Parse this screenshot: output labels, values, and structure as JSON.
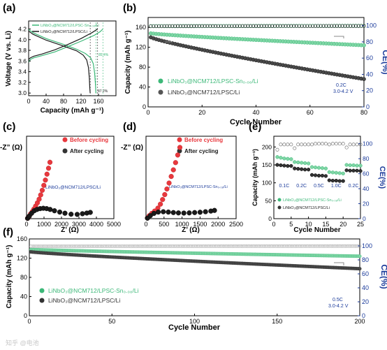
{
  "colors": {
    "green": "#3cb878",
    "green_light": "#7fd6a5",
    "black": "#1a1a1a",
    "gray": "#7a7a7a",
    "red": "#e8383d",
    "blue": "#1a3a9a",
    "axis": "#000000"
  },
  "chart_data": [
    {
      "panel_label": "(a)",
      "type": "line",
      "xlabel": "Capacity (mAh g⁻¹)",
      "ylabel": "Voltage (V vs Li)",
      "xlim": [
        0,
        200
      ],
      "ylim": [
        2.95,
        4.35
      ],
      "xticks": [
        "0",
        "40",
        "80",
        "120",
        "160"
      ],
      "yticks": [
        "3.0",
        "3.2",
        "3.4",
        "3.6",
        "3.8",
        "4.0",
        "4.2"
      ],
      "legend": [
        "LiNbO₃@NCM712/LPSC-Sn₀.₀₈/Li",
        "LiNbO₃@NCM712/LPSC/Li"
      ],
      "annotations": [
        "85.4%",
        "87.2%"
      ],
      "series": [
        {
          "name": "LiNbO₃@NCM712/LPSC-Sn₀.₀₈/Li",
          "color": "green",
          "charge": [
            [
              0,
              3.58
            ],
            [
              4,
              3.63
            ],
            [
              12,
              3.66
            ],
            [
              30,
              3.7
            ],
            [
              60,
              3.77
            ],
            [
              90,
              3.87
            ],
            [
              120,
              3.97
            ],
            [
              150,
              4.08
            ],
            [
              164,
              4.15
            ],
            [
              170,
              4.2
            ]
          ],
          "discharge": [
            [
              0,
              4.19
            ],
            [
              10,
              4.13
            ],
            [
              40,
              4.02
            ],
            [
              80,
              3.91
            ],
            [
              110,
              3.82
            ],
            [
              130,
              3.74
            ],
            [
              142,
              3.66
            ],
            [
              148,
              3.55
            ],
            [
              151,
              3.38
            ],
            [
              153,
              3.18
            ],
            [
              154,
              3.0
            ]
          ]
        },
        {
          "name": "LiNbO₃@NCM712/LPSC/Li",
          "color": "black",
          "charge": [
            [
              0,
              3.63
            ],
            [
              4,
              3.66
            ],
            [
              12,
              3.69
            ],
            [
              30,
              3.73
            ],
            [
              60,
              3.81
            ],
            [
              90,
              3.91
            ],
            [
              120,
              4.02
            ],
            [
              145,
              4.13
            ],
            [
              158,
              4.2
            ]
          ],
          "discharge": [
            [
              0,
              4.16
            ],
            [
              10,
              4.1
            ],
            [
              40,
              3.99
            ],
            [
              80,
              3.88
            ],
            [
              110,
              3.79
            ],
            [
              125,
              3.71
            ],
            [
              133,
              3.62
            ],
            [
              137,
              3.48
            ],
            [
              139,
              3.28
            ],
            [
              140,
              3.1
            ],
            [
              141,
              3.0
            ]
          ]
        }
      ]
    },
    {
      "panel_label": "(b)",
      "type": "scatter",
      "xlabel": "Cycle Number",
      "ylabel": "Capacity (mAh g⁻¹)",
      "y2label": "CE(%)",
      "xlim": [
        0,
        80
      ],
      "ylim": [
        0,
        180
      ],
      "y2lim": [
        0,
        110
      ],
      "xticks": [
        "0",
        "20",
        "40",
        "60",
        "80"
      ],
      "yticks": [
        "0",
        "40",
        "80",
        "120",
        "160"
      ],
      "y2ticks": [
        "0",
        "20",
        "40",
        "60",
        "80",
        "100"
      ],
      "legend": [
        "LiNbO₃@NCM712/LPSC-Sn₀.₀₈/Li",
        "LiNbO₃@NCM712/LPSC/Li"
      ],
      "annotations": [
        "0.2C",
        "3.0-4.2 V"
      ],
      "series": [
        {
          "name": "LiNbO₃@NCM712/LPSC-Sn₀.₀₈/Li",
          "color": "green",
          "axis": "left",
          "start": 148,
          "end": 124,
          "n": 80
        },
        {
          "name": "LiNbO₃@NCM712/LPSC/Li",
          "color": "black",
          "axis": "left",
          "start": 140,
          "end": 56,
          "n": 80
        },
        {
          "name": "CE Sn",
          "color": "green",
          "axis": "right",
          "start": 99.5,
          "end": 99.8,
          "n": 80,
          "open": true
        },
        {
          "name": "CE LPSC",
          "color": "black",
          "axis": "right",
          "start": 99.2,
          "end": 99.5,
          "n": 80,
          "open": true
        }
      ]
    },
    {
      "panel_label": "(c)",
      "type": "scatter",
      "xlabel": "Z’ (Ω)",
      "ylabel": "-Z” (Ω)",
      "xlim": [
        0,
        5000
      ],
      "ylim": [
        0,
        5000
      ],
      "xticks": [
        "0",
        "1000",
        "2000",
        "3000",
        "4000",
        "5000"
      ],
      "yticks": [],
      "legend": [
        "Before cycling",
        "After cycling"
      ],
      "annotations": [
        "LiNbO₃@NCM712/LPSC/Li"
      ],
      "series": [
        {
          "name": "Before cycling",
          "color": "red",
          "points": [
            [
              60,
              20
            ],
            [
              150,
              140
            ],
            [
              230,
              290
            ],
            [
              330,
              430
            ],
            [
              420,
              580
            ],
            [
              520,
              760
            ],
            [
              620,
              960
            ],
            [
              720,
              1180
            ],
            [
              810,
              1440
            ],
            [
              900,
              1720
            ],
            [
              990,
              2020
            ],
            [
              1080,
              2340
            ],
            [
              1170,
              2700
            ],
            [
              1260,
              3060
            ],
            [
              1340,
              3420
            ]
          ]
        },
        {
          "name": "After cycling",
          "color": "black",
          "points": [
            [
              60,
              20
            ],
            [
              160,
              160
            ],
            [
              290,
              330
            ],
            [
              440,
              480
            ],
            [
              600,
              560
            ],
            [
              780,
              610
            ],
            [
              960,
              630
            ],
            [
              1150,
              610
            ],
            [
              1350,
              560
            ],
            [
              1600,
              480
            ],
            [
              1900,
              400
            ],
            [
              2200,
              330
            ],
            [
              2550,
              270
            ],
            [
              2900,
              260
            ],
            [
              3200,
              300
            ],
            [
              3450,
              340
            ],
            [
              3650,
              380
            ]
          ]
        }
      ]
    },
    {
      "panel_label": "(d)",
      "type": "scatter",
      "xlabel": "Z’ (Ω)",
      "ylabel": "-Z” (Ω)",
      "xlim": [
        0,
        2500
      ],
      "ylim": [
        0,
        2500
      ],
      "xticks": [
        "0",
        "500",
        "1000",
        "1500",
        "2000",
        "2500"
      ],
      "yticks": [],
      "legend": [
        "Before cycling",
        "After cycling"
      ],
      "annotations": [
        "LiNbO₃@NCM712/LPSC-Sn₀.₀₈/Li"
      ],
      "series": [
        {
          "name": "Before cycling",
          "color": "red",
          "points": [
            [
              40,
              20
            ],
            [
              90,
              90
            ],
            [
              160,
              160
            ],
            [
              240,
              230
            ],
            [
              330,
              320
            ],
            [
              400,
              440
            ],
            [
              460,
              580
            ],
            [
              520,
              730
            ],
            [
              580,
              900
            ],
            [
              640,
              1080
            ],
            [
              700,
              1280
            ],
            [
              760,
              1480
            ],
            [
              820,
              1700
            ],
            [
              880,
              1930
            ],
            [
              940,
              2160
            ]
          ]
        },
        {
          "name": "After cycling",
          "color": "black",
          "points": [
            [
              40,
              15
            ],
            [
              120,
              90
            ],
            [
              220,
              160
            ],
            [
              340,
              200
            ],
            [
              480,
              210
            ],
            [
              620,
              200
            ],
            [
              760,
              185
            ],
            [
              900,
              175
            ],
            [
              1050,
              170
            ],
            [
              1200,
              175
            ],
            [
              1350,
              185
            ],
            [
              1500,
              195
            ],
            [
              1650,
              210
            ],
            [
              1800,
              230
            ],
            [
              1900,
              250
            ]
          ]
        }
      ]
    },
    {
      "panel_label": "(e)",
      "type": "scatter",
      "xlabel": "Cycle Number",
      "ylabel": "Capacity (mAh g⁻¹)",
      "y2label": "CE(%)",
      "xlim": [
        0,
        25
      ],
      "ylim": [
        0,
        230
      ],
      "y2lim": [
        0,
        110
      ],
      "xticks": [
        "0",
        "5",
        "10",
        "15",
        "20",
        "25"
      ],
      "yticks": [
        "0",
        "50",
        "100",
        "150",
        "200"
      ],
      "y2ticks": [
        "0",
        "20",
        "40",
        "60",
        "80",
        "100"
      ],
      "rate_labels": [
        "0.1C",
        "0.2C",
        "0.5C",
        "1.0C",
        "0.2C"
      ],
      "legend": [
        "LiNbO₃@NCM712/LPSC-Sn₀.₀₈/Li",
        "LiNbO₃@NCM712/LPSC/Li"
      ],
      "series": [
        {
          "name": "LiNbO₃@NCM712/LPSC-Sn₀.₀₈/Li",
          "color": "green",
          "axis": "left",
          "values": [
            172,
            170,
            168,
            167,
            166,
            158,
            157,
            156,
            155,
            154,
            144,
            143,
            142,
            141,
            140,
            130,
            129,
            128,
            127,
            126,
            150,
            149,
            149,
            148,
            148
          ]
        },
        {
          "name": "LiNbO₃@NCM712/LPSC/Li",
          "color": "black",
          "axis": "left",
          "values": [
            150,
            149,
            148,
            147,
            147,
            140,
            139,
            138,
            137,
            137,
            122,
            121,
            120,
            120,
            119,
            107,
            106,
            106,
            105,
            105,
            135,
            134,
            134,
            134,
            133
          ]
        },
        {
          "name": "CE",
          "color": "gray",
          "axis": "right",
          "open": true,
          "values": [
            92,
            99,
            99,
            99,
            99,
            94,
            99,
            99,
            99,
            99,
            99,
            100,
            100,
            100,
            100,
            99,
            100,
            100,
            100,
            100,
            95,
            99,
            99,
            99,
            99
          ]
        }
      ]
    },
    {
      "panel_label": "(f)",
      "type": "scatter",
      "xlabel": "Cycle Number",
      "ylabel": "Capacity (mAh g⁻¹)",
      "y2label": "CE(%)",
      "xlim": [
        0,
        200
      ],
      "ylim": [
        0,
        160
      ],
      "y2lim": [
        0,
        110
      ],
      "xticks": [
        "0",
        "50",
        "100",
        "150",
        "200"
      ],
      "yticks": [
        "0",
        "40",
        "80",
        "120",
        "160"
      ],
      "y2ticks": [
        "0",
        "20",
        "40",
        "60",
        "80",
        "100"
      ],
      "legend": [
        "LiNbO₃@NCM712/LPSC-Sn₀.₀₈/Li",
        "LiNbO₃@NCM712/LPSC/Li"
      ],
      "annotations": [
        "0.5C",
        "3.0-4.2 V"
      ],
      "series": [
        {
          "name": "LiNbO₃@NCM712/LPSC-Sn₀.₀₈/Li",
          "color": "green",
          "axis": "left",
          "start": 138,
          "end": 124,
          "n": 200
        },
        {
          "name": "LiNbO₃@NCM712/LPSC/Li",
          "color": "black",
          "axis": "left",
          "start": 133,
          "end": 98,
          "n": 200
        },
        {
          "name": "CE",
          "color": "gray",
          "axis": "right",
          "start": 99.5,
          "end": 99.8,
          "n": 200,
          "open": true
        }
      ]
    }
  ],
  "text": {
    "a_label": "(a)",
    "b_label": "(b)",
    "c_label": "(c)",
    "d_label": "(d)",
    "e_label": "(e)",
    "f_label": "(f)",
    "a_xlabel": "Capacity (mAh g⁻¹)",
    "a_ylabel": "Voltage (V vs. Li)",
    "a_leg1": "LiNbO₃@NCM712/LPSC-Sn₀.₀₈/Li",
    "a_leg2": "LiNbO₃@NCM712/LPSC/Li",
    "a_ann1": "85.4%",
    "a_ann2": "87.2%",
    "b_xlabel": "Cycle Number",
    "b_ylabel": "Capacity (mAh g⁻¹)",
    "b_y2label": "CE(%)",
    "b_leg1": "LiNbO₃@NCM712/LPSC-Sn₀.₀₈/Li",
    "b_leg2": "LiNbO₃@NCM712/LPSC/Li",
    "b_ann1": "0.2C",
    "b_ann2": "3.0-4.2 V",
    "c_xlabel": "Z’ (Ω)",
    "c_ylabel": "-Z” (Ω)",
    "c_leg1": "Before cycling",
    "c_leg2": "After cycling",
    "c_note": "LiNbO₃@NCM712/LPSC/Li",
    "d_xlabel": "Z’ (Ω)",
    "d_ylabel": "-Z” (Ω)",
    "d_leg1": "Before cycling",
    "d_leg2": "After cycling",
    "d_note": "LiNbO₃@NCM712/LPSC-Sn₀.₀₈/Li",
    "e_xlabel": "Cycle Number",
    "e_ylabel": "Capacity (mAh g⁻¹)",
    "e_y2label": "CE(%)",
    "e_leg1": "LiNbO₃@NCM712/LPSC-Sn₀.₀₈/Li",
    "e_leg2": "LiNbO₃@NCM712/LPSC/Li",
    "f_xlabel": "Cycle Number",
    "f_ylabel": "Capacity (mAh g⁻¹)",
    "f_y2label": "CE(%)",
    "f_leg1": "LiNbO₃@NCM712/LPSC-Sn₀.₀₈/Li",
    "f_leg2": "LiNbO₃@NCM712/LPSC/Li",
    "f_ann1": "0.5C",
    "f_ann2": "3.0-4.2 V",
    "watermark": "知乎 @电池"
  }
}
